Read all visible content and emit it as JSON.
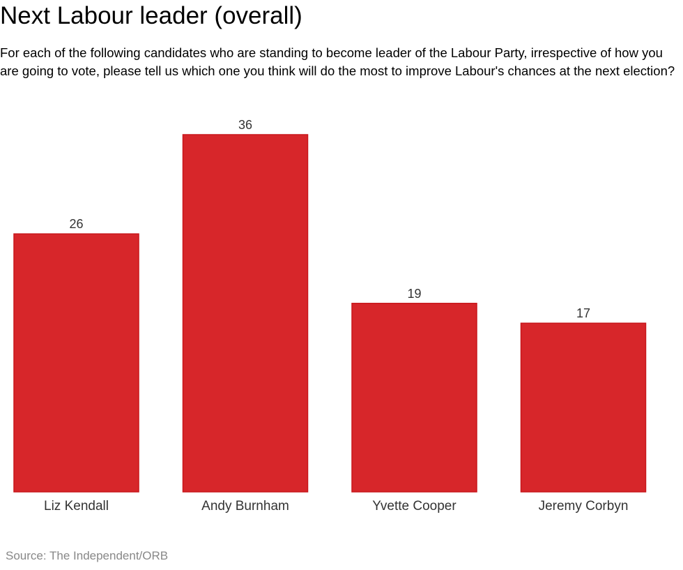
{
  "title": "Next Labour leader (overall)",
  "subtitle": "For each of the following candidates who are standing to become leader of the Labour Party, irrespective of how you are going to vote, please tell us which one you think will do the most to improve Labour's chances at the next election?",
  "source": "Source: The Independent/ORB",
  "colors": {
    "bar_fill": "#d7262a",
    "bar_stroke": "#c8161b",
    "label": "#333333",
    "source": "#888888"
  },
  "chart_data": {
    "type": "bar",
    "title": "Next Labour leader (overall)",
    "categories": [
      "Liz Kendall",
      "Andy Burnham",
      "Yvette Cooper",
      "Jeremy Corbyn"
    ],
    "values": [
      26,
      36,
      19,
      17
    ],
    "data_labels": [
      "26",
      "36",
      "19",
      "17"
    ],
    "xlabel": "",
    "ylabel": "",
    "ylim": [
      0,
      36
    ],
    "grid": false,
    "legend": "none"
  }
}
